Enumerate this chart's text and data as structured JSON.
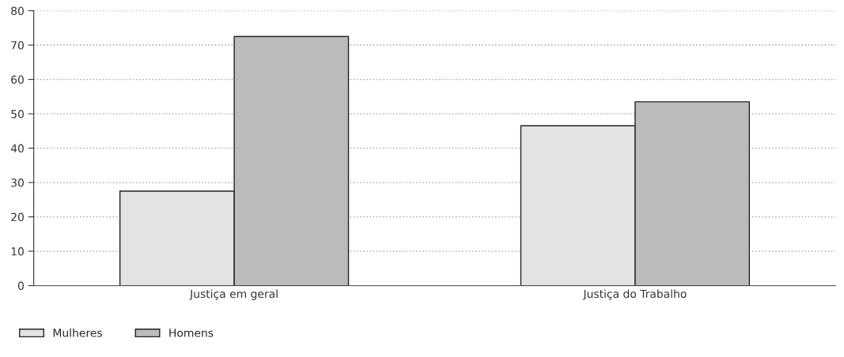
{
  "chart_data": {
    "type": "bar",
    "categories": [
      "Justiça em geral",
      "Justiça do Trabalho"
    ],
    "series": [
      {
        "name": "Mulheres",
        "color": "#e1e3e5",
        "values": [
          27.5,
          46.5
        ]
      },
      {
        "name": "Homens",
        "color": "#b9bbbd",
        "values": [
          72.5,
          53.5
        ]
      }
    ],
    "ylim": [
      0,
      80
    ],
    "yticks": [
      0,
      10,
      20,
      30,
      40,
      50,
      60,
      70,
      80
    ],
    "grid": "y",
    "legend": "bottom left"
  }
}
